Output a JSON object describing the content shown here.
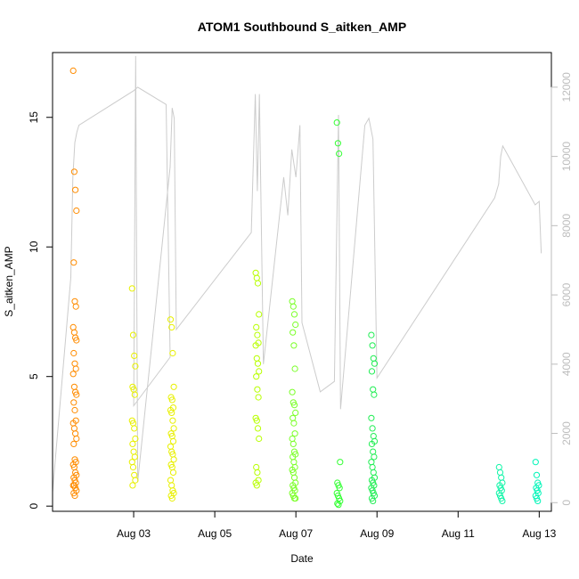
{
  "chart_data": {
    "type": "scatter",
    "title": "ATOM1 Southbound S_aitken_AMP",
    "xlabel": "Date",
    "ylabel": "S_aitken_AMP",
    "x_tick_labels": [
      "Aug 03",
      "Aug 05",
      "Aug 07",
      "Aug 09",
      "Aug 11",
      "Aug 13"
    ],
    "x_tick_days": [
      3,
      5,
      7,
      9,
      11,
      13
    ],
    "xlim_days": [
      1.0,
      13.3
    ],
    "ylim": [
      -0.2,
      17.5
    ],
    "y_ticks": [
      0,
      5,
      10,
      15
    ],
    "y2_ticks": [
      0,
      2000,
      4000,
      6000,
      8000,
      10000,
      12000
    ],
    "y2lim": [
      -250,
      13000
    ],
    "line_color": "#cccccc",
    "y2_tick_color": "#bdbdbd",
    "point_groups": [
      {
        "color": "#ff8c00",
        "day": 1.55,
        "values": [
          16.8,
          12.9,
          12.2,
          11.4,
          9.4,
          7.9,
          7.7,
          6.9,
          6.7,
          6.5,
          6.4,
          5.9,
          5.5,
          5.3,
          5.1,
          4.6,
          4.4,
          4.3,
          4.0,
          3.7,
          3.3,
          3.2,
          3.0,
          2.8,
          2.6,
          2.4,
          1.8,
          1.7,
          1.6,
          1.5,
          1.3,
          1.2,
          1.1,
          1.0,
          0.9,
          0.8,
          0.8,
          0.7,
          0.6,
          0.5,
          0.4
        ]
      },
      {
        "color": "#e8f000",
        "day": 3.0,
        "values": [
          8.4,
          6.6,
          5.8,
          5.4,
          4.6,
          4.5,
          4.3,
          3.3,
          3.2,
          3.0,
          2.6,
          2.4,
          2.1,
          1.9,
          1.7,
          1.5,
          1.2,
          1.0,
          0.8
        ]
      },
      {
        "color": "#e8f000",
        "day": 3.95,
        "values": [
          7.2,
          6.9,
          5.9,
          4.6,
          4.2,
          4.1,
          3.8,
          3.7,
          3.6,
          3.3,
          3.0,
          2.8,
          2.7,
          2.5,
          2.3,
          2.1,
          2.0,
          1.8,
          1.6,
          1.5,
          1.3,
          1.0,
          0.8,
          0.6,
          0.5,
          0.4,
          0.3
        ]
      },
      {
        "color": "#b8ff00",
        "day": 6.05,
        "values": [
          9.0,
          8.8,
          8.6,
          7.4,
          6.9,
          6.6,
          6.3,
          6.2,
          5.7,
          5.5,
          5.2,
          5.0,
          4.5,
          4.2,
          3.4,
          3.3,
          3.0,
          2.6,
          1.5,
          1.3,
          1.0,
          0.9,
          0.8
        ]
      },
      {
        "color": "#7cff2a",
        "day": 6.95,
        "values": [
          7.9,
          7.7,
          7.4,
          7.0,
          6.7,
          6.2,
          5.3,
          4.4,
          4.0,
          3.9,
          3.6,
          3.4,
          3.2,
          2.8,
          2.6,
          2.4,
          2.1,
          2.0,
          1.9,
          1.7,
          1.5,
          1.4,
          1.3,
          1.1,
          0.9,
          0.8,
          0.7,
          0.6,
          0.5,
          0.4,
          0.3,
          0.3
        ]
      },
      {
        "color": "#33ff33",
        "day": 8.05,
        "values": [
          14.8,
          14.0,
          13.6,
          1.7,
          0.9,
          0.8,
          0.7,
          0.5,
          0.4,
          0.3,
          0.2,
          0.1,
          0.05
        ]
      },
      {
        "color": "#22ee55",
        "day": 8.9,
        "values": [
          6.6,
          6.2,
          5.7,
          5.5,
          5.2,
          4.5,
          4.3,
          3.4,
          3.0,
          2.7,
          2.5,
          2.4,
          2.1,
          1.9,
          1.7,
          1.5,
          1.3,
          1.1,
          1.0,
          0.9,
          0.8,
          0.7,
          0.6,
          0.5,
          0.4,
          0.3,
          0.2
        ]
      },
      {
        "color": "#11f5a8",
        "day": 12.05,
        "values": [
          1.5,
          1.3,
          1.1,
          0.9,
          0.8,
          0.7,
          0.6,
          0.5,
          0.4,
          0.3,
          0.2
        ]
      },
      {
        "color": "#00f5b8",
        "day": 12.95,
        "values": [
          1.7,
          1.2,
          0.9,
          0.8,
          0.7,
          0.6,
          0.5,
          0.4,
          0.3,
          0.2
        ]
      }
    ],
    "line_series": [
      [
        1.0,
        300
      ],
      [
        1.45,
        6500
      ],
      [
        1.5,
        9400
      ],
      [
        1.55,
        10400
      ],
      [
        1.6,
        10700
      ],
      [
        1.65,
        10900
      ],
      [
        3.0,
        11900
      ],
      [
        3.1,
        12000
      ],
      [
        3.8,
        11500
      ],
      [
        3.9,
        4200
      ],
      [
        3.0,
        2800
      ],
      [
        3.05,
        12900
      ],
      [
        3.1,
        600
      ],
      [
        3.9,
        9700
      ],
      [
        3.95,
        11400
      ],
      [
        4.0,
        11100
      ],
      [
        4.05,
        5000
      ],
      [
        5.9,
        7800
      ],
      [
        6.0,
        11800
      ],
      [
        6.05,
        9000
      ],
      [
        6.1,
        11800
      ],
      [
        6.2,
        4000
      ],
      [
        6.7,
        9400
      ],
      [
        6.8,
        8300
      ],
      [
        6.9,
        10200
      ],
      [
        7.0,
        9400
      ],
      [
        7.1,
        10900
      ],
      [
        7.15,
        5200
      ],
      [
        7.6,
        3200
      ],
      [
        7.95,
        3500
      ],
      [
        8.05,
        11200
      ],
      [
        8.1,
        2700
      ],
      [
        8.7,
        10900
      ],
      [
        8.8,
        11100
      ],
      [
        8.9,
        10500
      ],
      [
        9.0,
        3600
      ],
      [
        11.9,
        8800
      ],
      [
        12.0,
        9200
      ],
      [
        12.05,
        10000
      ],
      [
        12.1,
        10300
      ],
      [
        12.15,
        10200
      ],
      [
        12.9,
        8600
      ],
      [
        13.0,
        8700
      ],
      [
        13.05,
        7200
      ]
    ]
  }
}
